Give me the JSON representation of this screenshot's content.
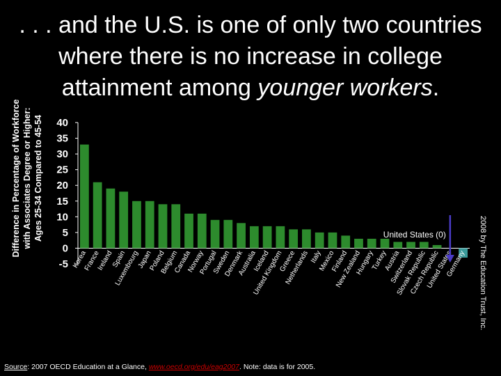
{
  "title": {
    "line1": ". . . and the U.S. is one of only two countries",
    "line2": "where there is no increase in college",
    "line3_prefix": "attainment among ",
    "line3_italic": "younger workers",
    "line3_suffix": "."
  },
  "credit": "2008 by The Education Trust, Inc.",
  "source": {
    "label": "Source",
    "text1": ":  2007 OECD Education at a Glance, ",
    "link": "www.oecd.org/edu/eag2007",
    "text2": ".  Note: data is for 2005."
  },
  "colors": {
    "bar": "#2d8b2d",
    "highlight_bar": "#3a9a9a",
    "arrow": "#4b3cc8",
    "background": "#000000",
    "text": "#ffffff"
  },
  "chart_data": {
    "type": "bar",
    "ylabel": [
      "Difference in Percentage of Workforce",
      "with Associates Degree or Higher:",
      "Ages 25-34 Compared to 45-54"
    ],
    "ylim": [
      -5,
      40
    ],
    "yticks": [
      -5,
      0,
      5,
      10,
      15,
      20,
      25,
      30,
      35,
      40
    ],
    "grid": false,
    "annotation": "United States (0)",
    "categories": [
      "Korea",
      "France",
      "Ireland",
      "Spain",
      "Luxembourg",
      "Japan",
      "Poland",
      "Belgium",
      "Canada",
      "Norway",
      "Portugal",
      "Sweden",
      "Denmark",
      "Australia",
      "Iceland",
      "United Kingdom",
      "Greece",
      "Netherlands",
      "Italy",
      "Mexico",
      "Finland",
      "New Zealand",
      "Hungary",
      "Turkey",
      "Austria",
      "Switzerland",
      "Slovak Republic",
      "Czech Republic",
      "United States",
      "Germany"
    ],
    "values": [
      33,
      21,
      19,
      18,
      15,
      15,
      14,
      14,
      11,
      11,
      9,
      9,
      8,
      7,
      7,
      7,
      6,
      6,
      5,
      5,
      4,
      3,
      3,
      3,
      2,
      2,
      2,
      1,
      0,
      -3
    ]
  }
}
